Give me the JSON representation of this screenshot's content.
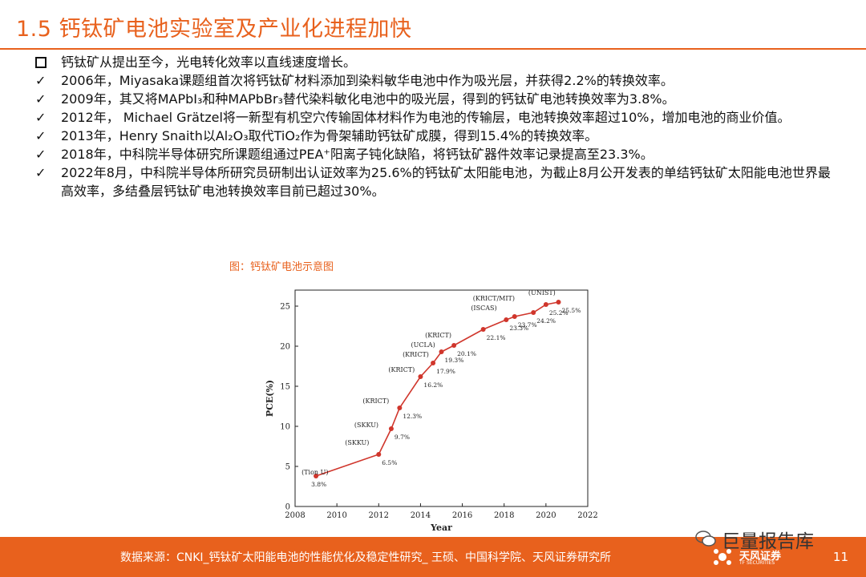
{
  "title": "1.5 钙钛矿电池实验室及产业化进程加快",
  "bullets": [
    {
      "marker": "square",
      "text": "钙钛矿从提出至今，光电转化效率以直线速度增长。"
    },
    {
      "marker": "check",
      "text": "2006年，Miyasaka课题组首次将钙钛矿材料添加到染料敏华电池中作为吸光层，并获得2.2%的转换效率。"
    },
    {
      "marker": "check",
      "text": "2009年，其又将MAPbI₃和种MAPbBr₃替代染料敏化电池中的吸光层，得到的钙钛矿电池转换效率为3.8%。"
    },
    {
      "marker": "check",
      "text": "2012年， Michael Grätzel将一新型有机空穴传输固体材料作为电池的传输层，电池转换效率超过10%，增加电池的商业价值。"
    },
    {
      "marker": "check",
      "text": "2013年，Henry Snaith以Al₂O₃取代TiO₂作为骨架辅助钙钛矿成膜，得到15.4%的转换效率。"
    },
    {
      "marker": "check",
      "text": "2018年，中科院半导体研究所课题组通过PEA⁺阳离子钝化缺陷，将钙钛矿器件效率记录提高至23.3%。"
    },
    {
      "marker": "check",
      "text": "2022年8月，中科院半导体所研究员研制出认证效率为25.6%的钙钛矿太阳能电池，为截止8月公开发表的单结钙钛矿太阳能电池世界最高效率，多结叠层钙钛矿电池转换效率目前已超过30%。"
    }
  ],
  "chart_caption": "图：钙钛矿电池示意图",
  "chart_data": {
    "type": "line",
    "title": "",
    "xlabel": "Year",
    "ylabel": "PCE(%)",
    "xlim": [
      2008,
      2022
    ],
    "ylim": [
      0,
      27
    ],
    "x_ticks": [
      2008,
      2010,
      2012,
      2014,
      2016,
      2018,
      2020,
      2022
    ],
    "y_ticks": [
      0,
      5,
      10,
      15,
      20,
      25
    ],
    "grid": false,
    "color": "#D0362C",
    "points": [
      {
        "x": 2009.0,
        "y": 3.8,
        "value_label": "3.8%",
        "group": "(Tion U)"
      },
      {
        "x": 2012.0,
        "y": 6.5,
        "value_label": "6.5%",
        "group": "(SKKU)"
      },
      {
        "x": 2012.6,
        "y": 9.7,
        "value_label": "9.7%",
        "group": "(SKKU)"
      },
      {
        "x": 2013.0,
        "y": 12.3,
        "value_label": "12.3%",
        "group": "(KRICT)"
      },
      {
        "x": 2014.0,
        "y": 16.2,
        "value_label": "16.2%",
        "group": "(KRICT)"
      },
      {
        "x": 2014.6,
        "y": 17.9,
        "value_label": "17.9%",
        "group": "(KRICT)"
      },
      {
        "x": 2015.0,
        "y": 19.3,
        "value_label": "19.3%",
        "group": "(UCLA)"
      },
      {
        "x": 2015.6,
        "y": 20.1,
        "value_label": "20.1%",
        "group": "(KRICT)"
      },
      {
        "x": 2017.0,
        "y": 22.1,
        "value_label": "22.1%",
        "group": "(KRICT)"
      },
      {
        "x": 2018.1,
        "y": 23.3,
        "value_label": "23.3%",
        "group": "(ISCAS)"
      },
      {
        "x": 2018.5,
        "y": 23.7,
        "value_label": "23.7%",
        "group": "(KRICT/MIT)"
      },
      {
        "x": 2019.4,
        "y": 24.2,
        "value_label": "24.2%",
        "group": "(KRICT/MIT)"
      },
      {
        "x": 2020.0,
        "y": 25.2,
        "value_label": "25.2%",
        "group": "(UNIST)"
      },
      {
        "x": 2020.6,
        "y": 25.5,
        "value_label": "25.5%",
        "group": "(UNIST)"
      }
    ],
    "group_labels": [
      "(Tion U)",
      "(SKKU)",
      "(SKKU)",
      "(KRICT)",
      "(KRICT)",
      "(KRICT)",
      "(UCLA)",
      "(KRICT)",
      "(ISCAS)",
      "(KRICT/MIT)",
      "(UNIST)"
    ]
  },
  "footer": {
    "source": "数据来源：CNKI_钙钛矿太阳能电池的性能优化及稳定性研究_ 王硕、中国科学院、天风证券研究所",
    "page_number": "11",
    "brand": "天风证券",
    "brand_sub": "TF SECURITIES",
    "watermark": "巨量报告库"
  }
}
